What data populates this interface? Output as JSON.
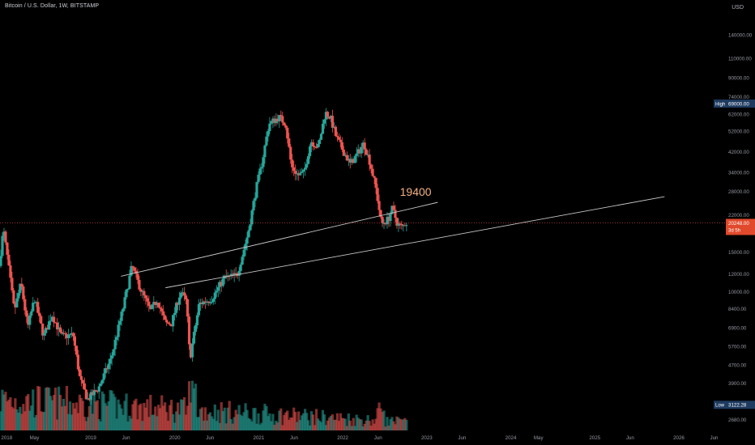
{
  "header": {
    "symbol_title": "Bitcoin / U.S. Dollar, 1W, BITSTAMP",
    "price_unit": "USD"
  },
  "colors": {
    "background": "#000000",
    "up": "#26a69a",
    "down": "#ef5350",
    "trendline": "#c8c8c8",
    "annotation": "#f4b183",
    "high_badge": "#1e3a5f",
    "low_badge": "#1e3a5f",
    "price_badge": "#e0492b"
  },
  "chart_data": {
    "type": "candlestick",
    "title": "Bitcoin / U.S. Dollar, 1W, BITSTAMP",
    "ylabel": "USD",
    "yscale": "log",
    "ylim": [
      2400,
      200000
    ],
    "y_ticks": [
      "140000.00",
      "110000.00",
      "90000.00",
      "74000.00",
      "62000.00",
      "52000.00",
      "42000.00",
      "34000.00",
      "28000.00",
      "22000.00",
      "15000.00",
      "12000.00",
      "10000.00",
      "8400.00",
      "6900.00",
      "5700.00",
      "4700.00",
      "3900.00",
      "2680.00"
    ],
    "x_ticks": [
      "2018",
      "May",
      "2019",
      "Jun",
      "2020",
      "Jun",
      "2021",
      "Jun",
      "2022",
      "Jun",
      "2023",
      "Jun",
      "2024",
      "May",
      "2025",
      "Jun",
      "2026",
      "Jun"
    ],
    "x_ticks_years": [
      2018.0,
      2018.33,
      2019.0,
      2019.42,
      2020.0,
      2020.42,
      2021.0,
      2021.42,
      2022.0,
      2022.42,
      2023.0,
      2023.42,
      2024.0,
      2024.33,
      2025.0,
      2025.42,
      2026.0,
      2026.42
    ],
    "x_range_years": [
      2017.92,
      2026.55
    ],
    "price_path": [
      {
        "t": 2017.92,
        "p": 13000
      },
      {
        "t": 2017.97,
        "p": 19000
      },
      {
        "t": 2018.02,
        "p": 14000
      },
      {
        "t": 2018.1,
        "p": 8200
      },
      {
        "t": 2018.18,
        "p": 10900
      },
      {
        "t": 2018.26,
        "p": 6900
      },
      {
        "t": 2018.34,
        "p": 9300
      },
      {
        "t": 2018.45,
        "p": 6300
      },
      {
        "t": 2018.55,
        "p": 7900
      },
      {
        "t": 2018.66,
        "p": 6300
      },
      {
        "t": 2018.8,
        "p": 6400
      },
      {
        "t": 2018.88,
        "p": 4100
      },
      {
        "t": 2018.97,
        "p": 3300
      },
      {
        "t": 2019.1,
        "p": 3700
      },
      {
        "t": 2019.25,
        "p": 5000
      },
      {
        "t": 2019.4,
        "p": 8600
      },
      {
        "t": 2019.5,
        "p": 13000
      },
      {
        "t": 2019.6,
        "p": 10300
      },
      {
        "t": 2019.72,
        "p": 8200
      },
      {
        "t": 2019.8,
        "p": 9200
      },
      {
        "t": 2019.9,
        "p": 7200
      },
      {
        "t": 2019.97,
        "p": 7200
      },
      {
        "t": 2020.08,
        "p": 10000
      },
      {
        "t": 2020.15,
        "p": 9000
      },
      {
        "t": 2020.19,
        "p": 5000
      },
      {
        "t": 2020.3,
        "p": 8800
      },
      {
        "t": 2020.45,
        "p": 9300
      },
      {
        "t": 2020.6,
        "p": 11500
      },
      {
        "t": 2020.75,
        "p": 11800
      },
      {
        "t": 2020.88,
        "p": 18000
      },
      {
        "t": 2020.98,
        "p": 29000
      },
      {
        "t": 2021.05,
        "p": 38000
      },
      {
        "t": 2021.13,
        "p": 56000
      },
      {
        "t": 2021.25,
        "p": 60000
      },
      {
        "t": 2021.33,
        "p": 56000
      },
      {
        "t": 2021.4,
        "p": 36000
      },
      {
        "t": 2021.48,
        "p": 33000
      },
      {
        "t": 2021.55,
        "p": 34000
      },
      {
        "t": 2021.63,
        "p": 47000
      },
      {
        "t": 2021.72,
        "p": 44000
      },
      {
        "t": 2021.8,
        "p": 63000
      },
      {
        "t": 2021.86,
        "p": 60000
      },
      {
        "t": 2021.93,
        "p": 49000
      },
      {
        "t": 2022.02,
        "p": 42000
      },
      {
        "t": 2022.1,
        "p": 37000
      },
      {
        "t": 2022.2,
        "p": 42000
      },
      {
        "t": 2022.26,
        "p": 46000
      },
      {
        "t": 2022.33,
        "p": 38000
      },
      {
        "t": 2022.4,
        "p": 29500
      },
      {
        "t": 2022.47,
        "p": 20000
      },
      {
        "t": 2022.55,
        "p": 21000
      },
      {
        "t": 2022.6,
        "p": 23500
      },
      {
        "t": 2022.66,
        "p": 20000
      },
      {
        "t": 2022.72,
        "p": 19300
      },
      {
        "t": 2022.75,
        "p": 20248
      }
    ],
    "trendlines": [
      {
        "x1": 2019.36,
        "y1": 11700,
        "x2": 2023.13,
        "y2": 25000
      },
      {
        "x1": 2019.89,
        "y1": 10400,
        "x2": 2025.83,
        "y2": 26500
      }
    ],
    "annotations": [
      {
        "text": "19400",
        "t": 2022.68,
        "p": 26800
      }
    ],
    "markers": {
      "high": {
        "label": "High",
        "value": "69000.00"
      },
      "low": {
        "label": "Low",
        "value": "3122.28"
      },
      "last_price": {
        "value": "20248.00",
        "countdown": "3d 5h"
      }
    },
    "volume": "relative bars below price, teal/red"
  }
}
